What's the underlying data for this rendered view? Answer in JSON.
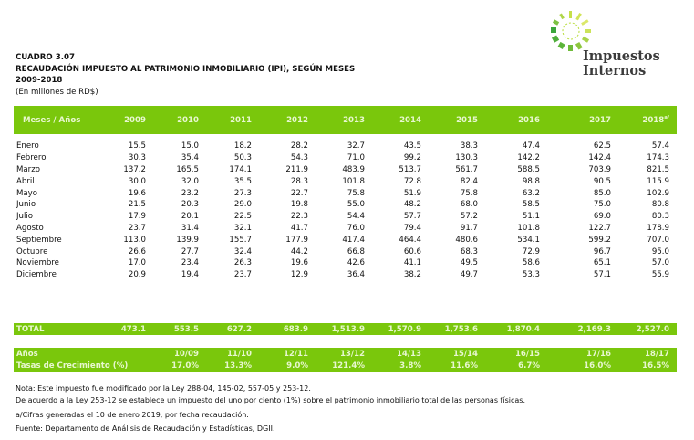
{
  "header": {
    "cuadro": "CUADRO 3.07",
    "title": "RECAUDACIÓN IMPUESTO AL PATRIMONIO INMOBILIARIO (IPI), SEGÚN MESES",
    "period": "2009-2018",
    "units": "(En millones de RD$)"
  },
  "logo": {
    "icon": "sun-rays-logo-icon",
    "line1": "Impuestos",
    "line2": "Internos",
    "colors": [
      "#7ac70c",
      "#c8e02c",
      "#3aa63c"
    ]
  },
  "table": {
    "corner_label": "Meses / Años",
    "years": [
      "2009",
      "2010",
      "2011",
      "2012",
      "2013",
      "2014",
      "2015",
      "2016",
      "2017",
      "2018"
    ],
    "last_year_note": "a/",
    "rows": [
      {
        "month": "Enero",
        "values": [
          "15.5",
          "15.0",
          "18.2",
          "28.2",
          "32.7",
          "43.5",
          "38.3",
          "47.4",
          "62.5",
          "57.4"
        ]
      },
      {
        "month": "Febrero",
        "values": [
          "30.3",
          "35.4",
          "50.3",
          "54.3",
          "71.0",
          "99.2",
          "130.3",
          "142.2",
          "142.4",
          "174.3"
        ]
      },
      {
        "month": "Marzo",
        "values": [
          "137.2",
          "165.5",
          "174.1",
          "211.9",
          "483.9",
          "513.7",
          "561.7",
          "588.5",
          "703.9",
          "821.5"
        ]
      },
      {
        "month": "Abril",
        "values": [
          "30.0",
          "32.0",
          "35.5",
          "28.3",
          "101.8",
          "72.8",
          "82.4",
          "98.8",
          "90.5",
          "115.9"
        ]
      },
      {
        "month": "Mayo",
        "values": [
          "19.6",
          "23.2",
          "27.3",
          "22.7",
          "75.8",
          "51.9",
          "75.8",
          "63.2",
          "85.0",
          "102.9"
        ]
      },
      {
        "month": "Junio",
        "values": [
          "21.5",
          "20.3",
          "29.0",
          "19.8",
          "55.0",
          "48.2",
          "68.0",
          "58.5",
          "75.0",
          "80.8"
        ]
      },
      {
        "month": "Julio",
        "values": [
          "17.9",
          "20.1",
          "22.5",
          "22.3",
          "54.4",
          "57.7",
          "57.2",
          "51.1",
          "69.0",
          "80.3"
        ]
      },
      {
        "month": "Agosto",
        "values": [
          "23.7",
          "31.4",
          "32.1",
          "41.7",
          "76.0",
          "79.4",
          "91.7",
          "101.8",
          "122.7",
          "178.9"
        ]
      },
      {
        "month": "Septiembre",
        "values": [
          "113.0",
          "139.9",
          "155.7",
          "177.9",
          "417.4",
          "464.4",
          "480.6",
          "534.1",
          "599.2",
          "707.0"
        ]
      },
      {
        "month": "Octubre",
        "values": [
          "26.6",
          "27.7",
          "32.4",
          "44.2",
          "66.8",
          "60.6",
          "68.3",
          "72.9",
          "96.7",
          "95.0"
        ]
      },
      {
        "month": "Noviembre",
        "values": [
          "17.0",
          "23.4",
          "26.3",
          "19.6",
          "42.6",
          "41.1",
          "49.5",
          "58.6",
          "65.1",
          "57.0"
        ]
      },
      {
        "month": "Diciembre",
        "values": [
          "20.9",
          "19.4",
          "23.7",
          "12.9",
          "36.4",
          "38.2",
          "49.7",
          "53.3",
          "57.1",
          "55.9"
        ]
      }
    ],
    "total": {
      "label": "TOTAL",
      "values": [
        "473.1",
        "553.5",
        "627.2",
        "683.9",
        "1,513.9",
        "1,570.9",
        "1,753.6",
        "1,870.4",
        "2,169.3",
        "2,527.0"
      ]
    }
  },
  "growth": {
    "years_label": "Años",
    "periods": [
      "",
      "10/09",
      "11/10",
      "12/11",
      "13/12",
      "14/13",
      "15/14",
      "16/15",
      "17/16",
      "18/17"
    ],
    "rates_label": "Tasas de Crecimiento (%)",
    "rates": [
      "",
      "17.0%",
      "13.3%",
      "9.0%",
      "121.4%",
      "3.8%",
      "11.6%",
      "6.7%",
      "16.0%",
      "16.5%"
    ]
  },
  "notes": {
    "nota": "Nota: Este impuesto fue modificado por la Ley 288-04, 145-02, 557-05 y 253-12.",
    "ley": "De acuerdo a la Ley 253-12 se establece un impuesto del uno por ciento (1%) sobre el patrimonio inmobiliario total de las personas físicas.",
    "cifras": "a/Cifras generadas el 10 de enero 2019, por fecha recaudación.",
    "fuente": "Fuente: Departamento de Análisis de Recaudación y Estadísticas, DGII."
  }
}
